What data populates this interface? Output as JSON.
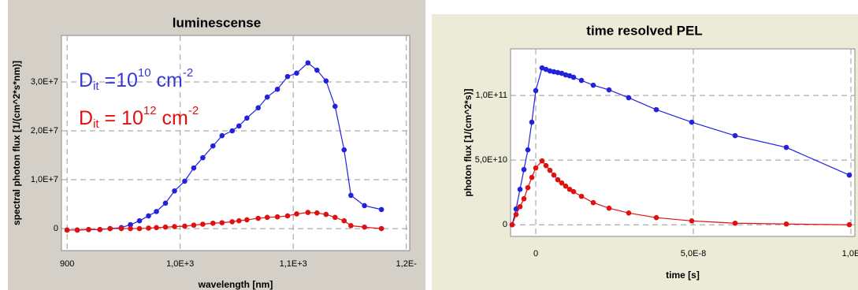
{
  "chart_data": [
    {
      "type": "line",
      "title": "luminescense",
      "x_label": "wavelength [nm]",
      "y_label": "spectral photon flux [1/(cm^2*s*nm)]",
      "x": [
        900,
        909,
        919,
        929,
        938,
        948,
        956,
        964,
        972,
        979,
        987,
        995,
        1004,
        1012,
        1020,
        1029,
        1037,
        1046,
        1052,
        1059,
        1069,
        1077,
        1086,
        1095,
        1103,
        1113,
        1121,
        1129,
        1137,
        1145,
        1151,
        1163,
        1178
      ],
      "series": [
        {
          "name": "blue",
          "color": "#2222dd",
          "values": [
            -300000,
            -300000,
            -200000,
            -200000,
            0,
            200000,
            800000,
            1600000,
            2600000,
            3500000,
            5200000,
            7700000,
            9700000,
            12400000,
            14500000,
            16900000,
            19000000,
            20000000,
            21000000,
            22600000,
            24700000,
            26900000,
            28500000,
            31100000,
            31800000,
            33900000,
            32400000,
            30200000,
            25000000,
            16100000,
            6800000,
            4700000,
            3900000
          ]
        },
        {
          "name": "red",
          "color": "#e01010",
          "values": [
            -300000,
            -300000,
            -200000,
            -200000,
            0,
            0,
            0,
            0,
            100000,
            200000,
            300000,
            400000,
            500000,
            700000,
            900000,
            1100000,
            1200000,
            1400000,
            1600000,
            1800000,
            2100000,
            2300000,
            2400000,
            2600000,
            3000000,
            3300000,
            3200000,
            2900000,
            2300000,
            1600000,
            600000,
            300000,
            0
          ]
        }
      ],
      "xlim": [
        895,
        1203
      ],
      "xticks": [
        900,
        {
          "value": 1000,
          "label": "1,0E+3"
        },
        {
          "value": 1100,
          "label": "1,1E+3"
        },
        {
          "value": 1200,
          "label": "1,2E-"
        }
      ],
      "ylim": [
        -4500000,
        39500000
      ],
      "yticks": [
        0,
        {
          "value": 10000000,
          "label": "1,0E+7"
        },
        {
          "value": 20000000,
          "label": "2,0E+7"
        },
        {
          "value": 30000000,
          "label": "3,0E+7"
        }
      ],
      "grid": true,
      "annotations": [
        {
          "color": "#3a3ad0",
          "parts": [
            "D",
            "it",
            " =10",
            "10",
            " cm",
            "-2"
          ]
        },
        {
          "color": "#e01010",
          "parts": [
            "D",
            "it",
            " = 10",
            "12",
            " cm",
            "-2"
          ]
        }
      ]
    },
    {
      "type": "line",
      "title": "time resolved PEL",
      "x_label": "time [s]",
      "y_label": "photon flux [1/(cm^2*s)]",
      "x": [
        -7.5e-09,
        -6.25e-09,
        -5e-09,
        -3.75e-09,
        -2.5e-09,
        -1.25e-09,
        0,
        2e-09,
        3.25e-09,
        4.5e-09,
        5.75e-09,
        7e-09,
        8.25e-09,
        9.5e-09,
        1.075e-08,
        1.2e-08,
        1.45e-08,
        1.825e-08,
        2.325e-08,
        2.95e-08,
        3.825e-08,
        4.95e-08,
        6.325e-08,
        7.95e-08,
        9.95e-08
      ],
      "series": [
        {
          "name": "blue",
          "color": "#2222dd",
          "values": [
            0,
            12200000000,
            27400000000,
            42700000000,
            57900000000,
            79300000000,
            103700000000,
            121300000000,
            120100000000,
            118900000000,
            118300000000,
            117700000000,
            117100000000,
            115900000000,
            115200000000,
            114000000000,
            111600000000,
            107900000000,
            104300000000,
            98200000000,
            89000000000,
            79300000000,
            68900000000,
            59800000000,
            38400000000
          ]
        },
        {
          "name": "red",
          "color": "#e01010",
          "values": [
            0,
            7900000000,
            14000000000,
            20100000000,
            28700000000,
            36600000000,
            43900000000,
            49400000000,
            45700000000,
            42100000000,
            38400000000,
            34800000000,
            32300000000,
            29900000000,
            27400000000,
            25600000000,
            22000000000,
            17100000000,
            12800000000,
            9100000000,
            5500000000,
            3000000000,
            1200000000,
            600000000,
            0
          ]
        }
      ],
      "xlim": [
        -8e-09,
        1.0125e-07
      ],
      "xticks": [
        0,
        {
          "value": 5e-08,
          "label": "5,0E-8"
        },
        {
          "value": 1e-07,
          "label": "1,0E"
        }
      ],
      "ylim": [
        -9000000000,
        136000000000
      ],
      "yticks": [
        0,
        {
          "value": 50000000000,
          "label": "5,0E+10"
        },
        {
          "value": 100000000000,
          "label": "1,0E+11"
        }
      ],
      "grid": true
    }
  ]
}
